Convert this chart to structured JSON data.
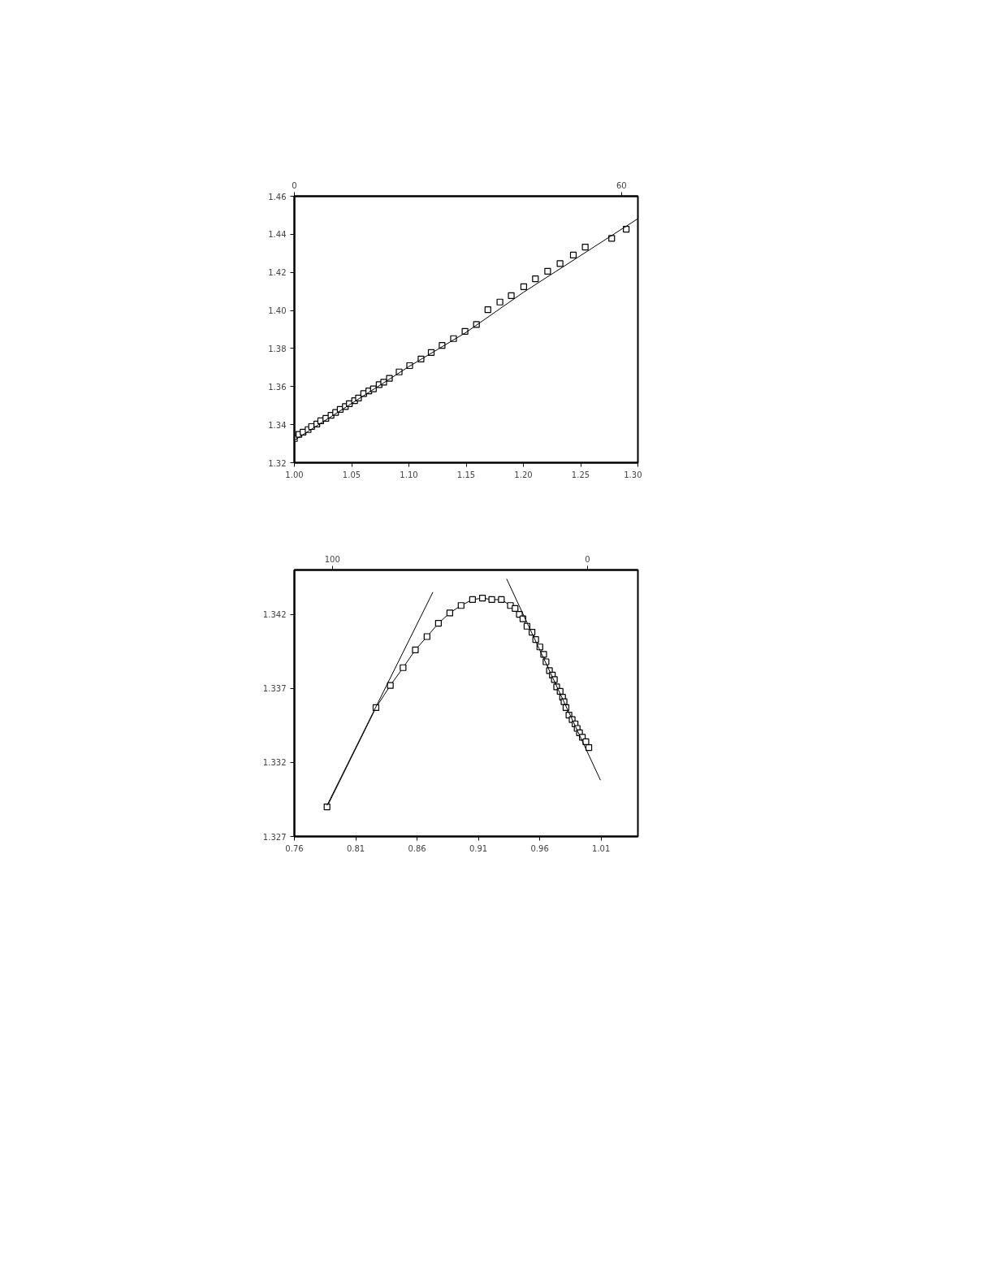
{
  "chart_data": [
    {
      "type": "scatter",
      "marker": "square",
      "grid": false,
      "xlim": [
        1.0,
        1.3
      ],
      "xticks": [
        {
          "value": 1.0,
          "label": "1.00"
        },
        1.05,
        {
          "value": 1.1,
          "label": "1.10"
        },
        1.15,
        {
          "value": 1.2,
          "label": "1.20"
        },
        1.25,
        {
          "value": 1.3,
          "label": "1.30"
        }
      ],
      "ylim": [
        1.32,
        1.46
      ],
      "yticks": [
        1.32,
        1.34,
        1.36,
        1.38,
        {
          "value": 1.4,
          "label": "1.40"
        },
        1.42,
        1.44,
        1.46
      ],
      "x2lim": [
        0,
        63
      ],
      "x2ticks": [
        0,
        60
      ],
      "series": [
        {
          "color": "#000000",
          "x": [
            1.0,
            1.004,
            1.0076,
            1.012,
            1.015,
            1.0196,
            1.023,
            1.0275,
            1.032,
            1.036,
            1.04,
            1.0445,
            1.048,
            1.0526,
            1.056,
            1.0605,
            1.065,
            1.069,
            1.074,
            1.078,
            1.083,
            1.0915,
            1.1007,
            1.1106,
            1.1195,
            1.129,
            1.139,
            1.149,
            1.159,
            1.169,
            1.1795,
            1.1894,
            1.2003,
            1.2105,
            1.2212,
            1.232,
            1.2436,
            1.254,
            1.2771,
            1.2898
          ],
          "values": [
            1.3327,
            1.3349,
            1.3361,
            1.3374,
            1.339,
            1.3403,
            1.342,
            1.3433,
            1.3449,
            1.3464,
            1.348,
            1.3495,
            1.351,
            1.3526,
            1.354,
            1.3563,
            1.3577,
            1.3588,
            1.361,
            1.3623,
            1.3643,
            1.3677,
            1.371,
            1.3745,
            1.3779,
            1.3816,
            1.3852,
            1.389,
            1.3926,
            1.4004,
            1.4044,
            1.4078,
            1.4125,
            1.4166,
            1.4206,
            1.4246,
            1.4291,
            1.4333,
            1.4379,
            1.4427
          ]
        },
        {
          "type": "line",
          "color": "#000000",
          "marker": "none",
          "x": [
            1.0,
            1.1,
            1.15,
            1.2,
            1.3
          ],
          "values": [
            1.3318,
            1.3705,
            1.3885,
            1.4095,
            1.4482
          ]
        }
      ]
    },
    {
      "type": "line",
      "marker": "square",
      "grid": false,
      "xlim": [
        0.76,
        1.04
      ],
      "xticks": [
        0.76,
        0.81,
        0.86,
        0.91,
        0.96,
        1.01
      ],
      "ylim": [
        1.327,
        1.345
      ],
      "yticks": [
        1.327,
        1.332,
        1.337,
        1.342
      ],
      "x2lim": [
        114.9,
        -19.8
      ],
      "x2ticks": [
        100,
        0
      ],
      "series": [
        {
          "color": "#000000",
          "marker": "square",
          "x": [
            0.7866,
            0.8265,
            0.8382,
            0.8486,
            0.8586,
            0.8681,
            0.8774,
            0.8867,
            0.8959,
            0.9052,
            0.9133,
            0.9209,
            0.9287,
            0.9361,
            0.9399,
            0.9434,
            0.9463,
            0.9496,
            0.9537,
            0.9567,
            0.9601,
            0.9632,
            0.9651,
            0.9679,
            0.9703,
            0.9719,
            0.9738,
            0.9766,
            0.9786,
            0.9798,
            0.9814,
            0.9838,
            0.9864,
            0.9888,
            0.9905,
            0.9924,
            0.9947,
            0.9976,
            1.0
          ],
          "values": [
            1.329,
            1.3357,
            1.3372,
            1.3384,
            1.3396,
            1.3405,
            1.3414,
            1.3421,
            1.3426,
            1.343,
            1.3431,
            1.343,
            1.343,
            1.3426,
            1.3424,
            1.342,
            1.3417,
            1.3412,
            1.3408,
            1.3403,
            1.3398,
            1.3393,
            1.3388,
            1.3382,
            1.3379,
            1.3376,
            1.3371,
            1.3368,
            1.3364,
            1.3361,
            1.3357,
            1.3352,
            1.3349,
            1.3346,
            1.3343,
            1.334,
            1.3337,
            1.3334,
            1.333
          ]
        },
        {
          "type": "line",
          "color": "#000000",
          "marker": "none",
          "x": [
            0.7866,
            0.8729
          ],
          "values": [
            1.3291,
            1.3435
          ]
        },
        {
          "type": "line",
          "color": "#000000",
          "marker": "none",
          "x": [
            0.933,
            1.0095
          ],
          "values": [
            1.3444,
            1.3308
          ]
        }
      ]
    }
  ]
}
